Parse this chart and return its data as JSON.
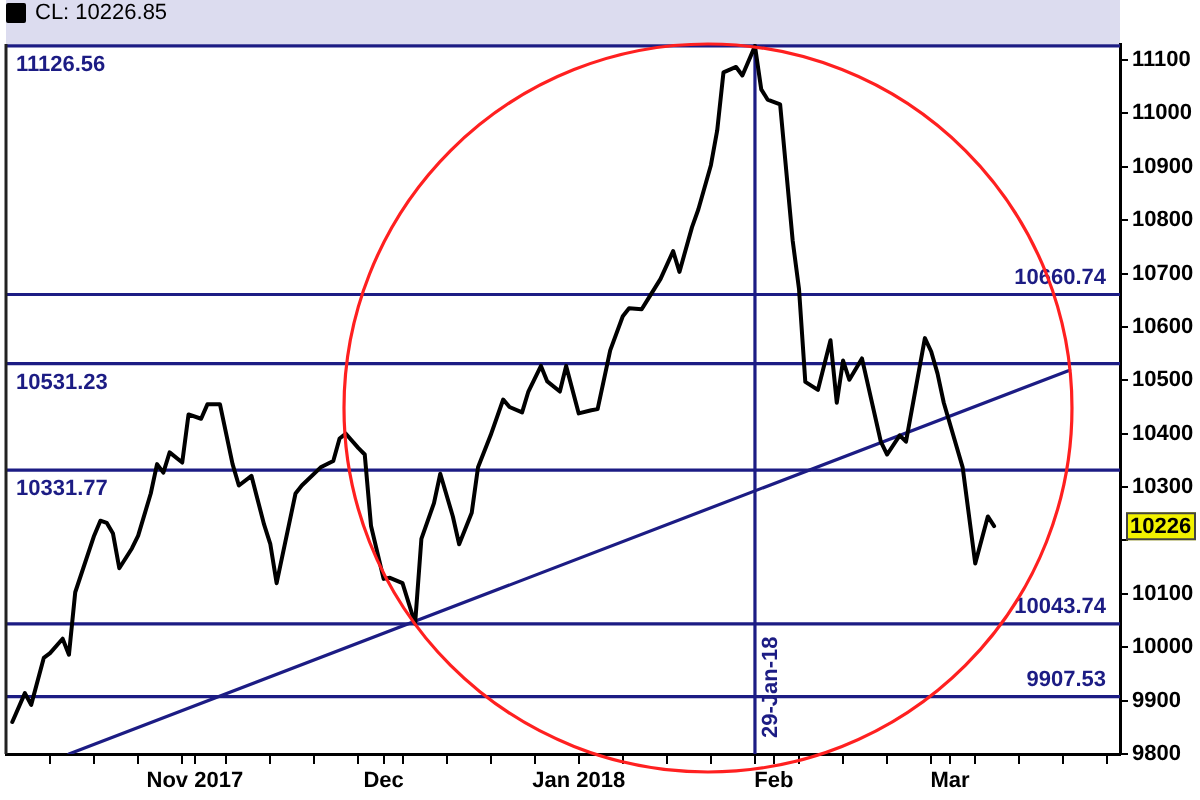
{
  "chart_data": {
    "type": "line",
    "series": [
      {
        "name": "CL: 10226.85",
        "color": "#000000",
        "x": [
          "2017-10-03",
          "2017-10-05",
          "2017-10-06",
          "2017-10-08",
          "2017-10-09",
          "2017-10-11",
          "2017-10-12",
          "2017-10-13",
          "2017-10-16",
          "2017-10-17",
          "2017-10-18",
          "2017-10-19",
          "2017-10-20",
          "2017-10-22",
          "2017-10-23",
          "2017-10-25",
          "2017-10-26",
          "2017-10-27",
          "2017-10-28",
          "2017-10-30",
          "2017-10-31",
          "2017-11-02",
          "2017-11-03",
          "2017-11-05",
          "2017-11-07",
          "2017-11-08",
          "2017-11-10",
          "2017-11-12",
          "2017-11-13",
          "2017-11-14",
          "2017-11-17",
          "2017-11-18",
          "2017-11-21",
          "2017-11-23",
          "2017-11-24",
          "2017-11-25",
          "2017-11-27",
          "2017-11-28",
          "2017-11-29",
          "2017-12-01",
          "2017-12-02",
          "2017-12-04",
          "2017-12-06",
          "2017-12-07",
          "2017-12-09",
          "2017-12-10",
          "2017-12-12",
          "2017-12-13",
          "2017-12-15",
          "2017-12-16",
          "2017-12-18",
          "2017-12-20",
          "2017-12-21",
          "2017-12-23",
          "2017-12-24",
          "2017-12-26",
          "2017-12-27",
          "2017-12-29",
          "2017-12-30",
          "2018-01-01",
          "2018-01-03",
          "2018-01-04",
          "2018-01-06",
          "2018-01-08",
          "2018-01-09",
          "2018-01-11",
          "2018-01-12",
          "2018-01-14",
          "2018-01-16",
          "2018-01-17",
          "2018-01-19",
          "2018-01-20",
          "2018-01-22",
          "2018-01-23",
          "2018-01-24",
          "2018-01-26",
          "2018-01-27",
          "2018-01-29",
          "2018-01-30",
          "2018-01-31",
          "2018-02-02",
          "2018-02-04",
          "2018-02-05",
          "2018-02-06",
          "2018-02-08",
          "2018-02-10",
          "2018-02-11",
          "2018-02-12",
          "2018-02-13",
          "2018-02-15",
          "2018-02-18",
          "2018-02-19",
          "2018-02-21",
          "2018-02-22",
          "2018-02-25",
          "2018-02-26",
          "2018-02-27",
          "2018-02-28",
          "2018-03-03",
          "2018-03-05",
          "2018-03-07",
          "2018-03-08"
        ],
        "values": [
          9860,
          9914,
          9892,
          9980,
          9989,
          10016,
          9986,
          10103,
          10209,
          10237,
          10233,
          10213,
          10148,
          10185,
          10209,
          10288,
          10343,
          10327,
          10365,
          10346,
          10436,
          10428,
          10455,
          10455,
          10343,
          10303,
          10321,
          10230,
          10193,
          10120,
          10288,
          10303,
          10337,
          10349,
          10391,
          10400,
          10373,
          10361,
          10227,
          10128,
          10130,
          10120,
          10044,
          10203,
          10270,
          10325,
          10245,
          10193,
          10252,
          10337,
          10397,
          10464,
          10450,
          10440,
          10479,
          10527,
          10498,
          10479,
          10527,
          10438,
          10444,
          10446,
          10556,
          10620,
          10635,
          10633,
          10652,
          10690,
          10742,
          10703,
          10787,
          10820,
          10903,
          10968,
          11077,
          11087,
          11071,
          11126,
          11045,
          11026,
          11017,
          10761,
          10671,
          10497,
          10482,
          10575,
          10458,
          10537,
          10501,
          10541,
          10385,
          10361,
          10397,
          10385,
          10579,
          10554,
          10513,
          10458,
          10337,
          10157,
          10245,
          10226.85
        ]
      },
      {
        "type": "line",
        "color": "#1c1c84",
        "x": [
          "2017-10-12",
          "2018-03-20"
        ],
        "values": [
          9800,
          10519
        ]
      }
    ],
    "xlim": [
      "2017-10-02",
      "2018-03-28"
    ],
    "xticks": [
      {
        "value": "2017-10-09",
        "label": null
      },
      {
        "value": "2017-10-16",
        "label": null
      },
      {
        "value": "2017-10-23",
        "label": null
      },
      {
        "value": "2017-10-30",
        "label": null
      },
      {
        "value": "2017-11-01",
        "label": "Nov 2017"
      },
      {
        "value": "2017-11-06",
        "label": null
      },
      {
        "value": "2017-11-13",
        "label": null
      },
      {
        "value": "2017-11-20",
        "label": null
      },
      {
        "value": "2017-11-27",
        "label": null
      },
      {
        "value": "2017-12-01",
        "label": "Dec"
      },
      {
        "value": "2017-12-04",
        "label": null
      },
      {
        "value": "2017-12-11",
        "label": null
      },
      {
        "value": "2017-12-18",
        "label": null
      },
      {
        "value": "2017-12-25",
        "label": null
      },
      {
        "value": "2018-01-01",
        "label": "Jan 2018"
      },
      {
        "value": "2018-01-08",
        "label": null
      },
      {
        "value": "2018-01-15",
        "label": null
      },
      {
        "value": "2018-01-22",
        "label": null
      },
      {
        "value": "2018-01-29",
        "label": null
      },
      {
        "value": "2018-02-01",
        "label": "Feb"
      },
      {
        "value": "2018-02-05",
        "label": null
      },
      {
        "value": "2018-02-12",
        "label": null
      },
      {
        "value": "2018-02-19",
        "label": null
      },
      {
        "value": "2018-02-26",
        "label": null
      },
      {
        "value": "2018-03-01",
        "label": "Mar"
      },
      {
        "value": "2018-03-05",
        "label": null
      },
      {
        "value": "2018-03-12",
        "label": null
      },
      {
        "value": "2018-03-19",
        "label": null
      },
      {
        "value": "2018-03-26",
        "label": null
      }
    ],
    "ylim": [
      9800,
      11130
    ],
    "yticks": [
      9800,
      9900,
      10000,
      10100,
      {
        "value": 10200,
        "label": null
      },
      10300,
      10400,
      10500,
      10600,
      10700,
      10800,
      10900,
      11000,
      11100
    ],
    "ref_lines": [
      {
        "axis": "y",
        "value": 11126.56,
        "label": "11126.56",
        "color": "#1c1c84"
      },
      {
        "axis": "y",
        "value": 10531.23,
        "label": "10531.23",
        "color": "#1c1c84"
      },
      {
        "axis": "y",
        "value": 10331.77,
        "label": "10331.77",
        "color": "#1c1c84"
      },
      {
        "axis": "y",
        "value": 10660.74,
        "label": "10660.74",
        "color": "#1c1c84"
      },
      {
        "axis": "y",
        "value": 10043.74,
        "label": "10043.74",
        "color": "#1c1c84"
      },
      {
        "axis": "y",
        "value": 9907.53,
        "label": "9907.53",
        "color": "#1c1c84"
      },
      {
        "axis": "x",
        "value": "2018-01-29",
        "label": "29-Jan-18",
        "color": "#1c1c84"
      }
    ],
    "annotations": [
      "10226"
    ],
    "legend": "top left",
    "marker": "none"
  }
}
